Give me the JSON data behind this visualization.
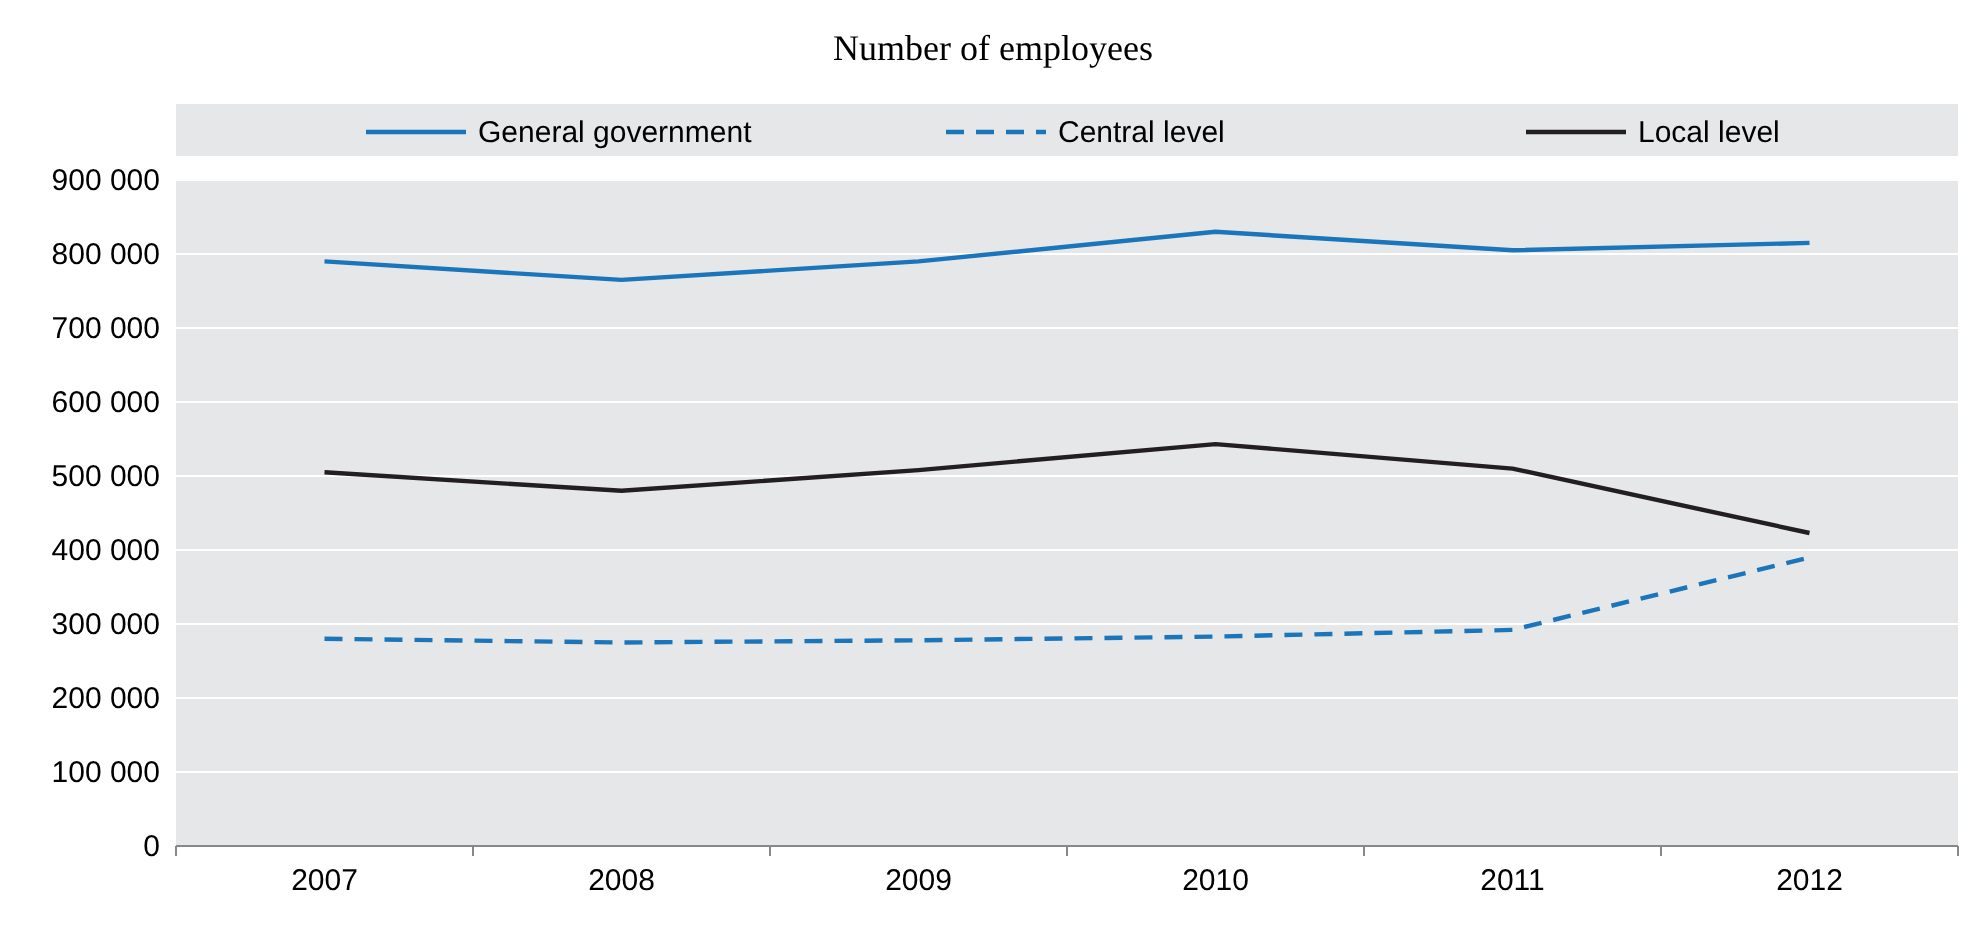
{
  "chart_data": {
    "type": "line",
    "title": "Number of employees",
    "categories": [
      "2007",
      "2008",
      "2009",
      "2010",
      "2011",
      "2012"
    ],
    "series": [
      {
        "name": "General government",
        "color": "#1a75bb",
        "line_style": "solid",
        "values": [
          790000,
          765000,
          790000,
          830000,
          805000,
          815000
        ]
      },
      {
        "name": "Central level",
        "color": "#1a75bb",
        "line_style": "dashed",
        "values": [
          280000,
          275000,
          278000,
          283000,
          292000,
          390000
        ]
      },
      {
        "name": "Local level",
        "color": "#231f20",
        "line_style": "solid",
        "values": [
          505000,
          480000,
          508000,
          543000,
          510000,
          423000
        ]
      }
    ],
    "ylim": [
      0,
      900000
    ],
    "yticks": [
      {
        "value": 0,
        "label": "0"
      },
      {
        "value": 100000,
        "label": "100 000"
      },
      {
        "value": 200000,
        "label": "200 000"
      },
      {
        "value": 300000,
        "label": "300 000"
      },
      {
        "value": 400000,
        "label": "400 000"
      },
      {
        "value": 500000,
        "label": "500 000"
      },
      {
        "value": 600000,
        "label": "600 000"
      },
      {
        "value": 700000,
        "label": "700 000"
      },
      {
        "value": 800000,
        "label": "800 000"
      },
      {
        "value": 900000,
        "label": "900 000"
      }
    ],
    "grid": "y",
    "legend": "top",
    "marker": "none"
  }
}
